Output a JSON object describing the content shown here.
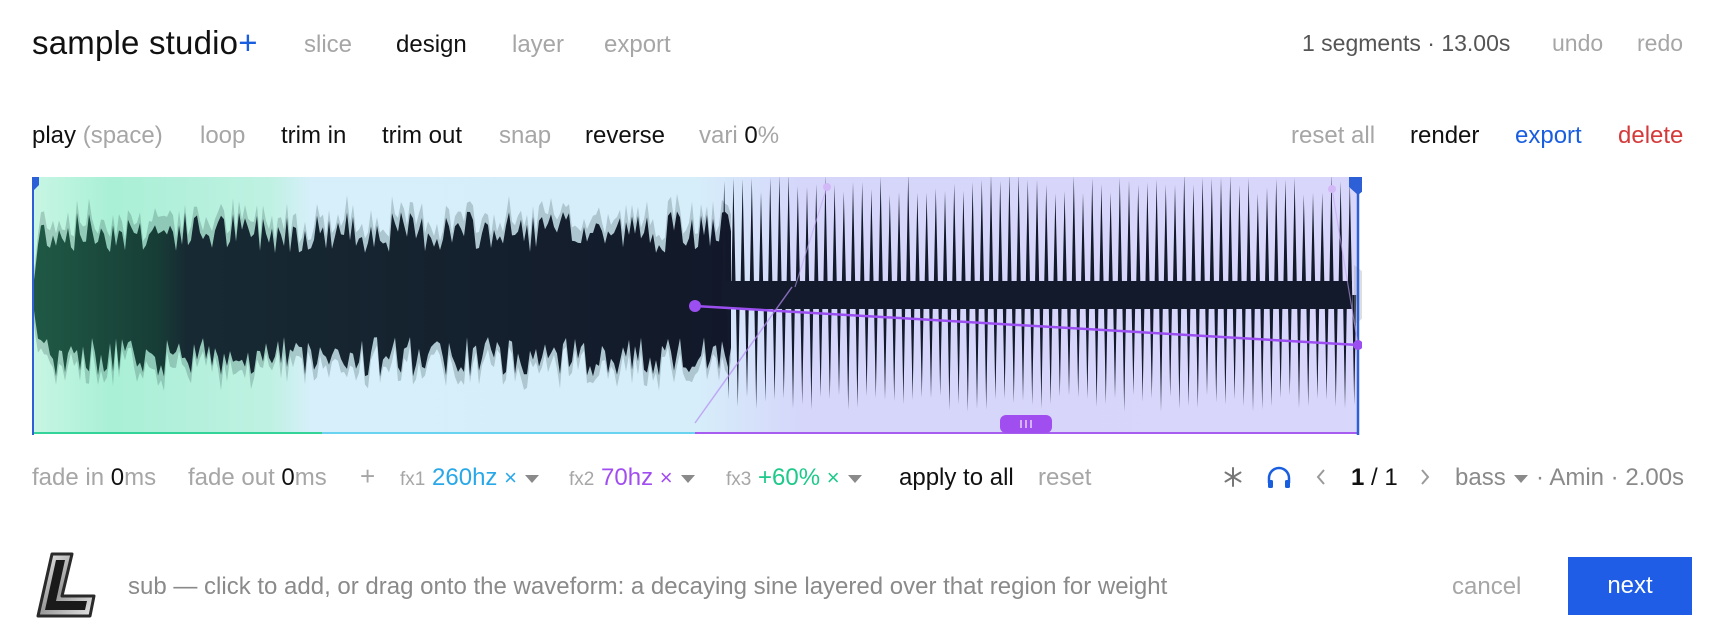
{
  "header": {
    "app_title": "sample studio",
    "app_title_plus": "+",
    "tabs": [
      {
        "label": "slice",
        "active": false
      },
      {
        "label": "design",
        "active": true
      },
      {
        "label": "layer",
        "active": false
      },
      {
        "label": "export",
        "active": false
      }
    ],
    "segments_info": "1 segments · 13.00s",
    "undo": "undo",
    "redo": "redo"
  },
  "toolbar": {
    "play": "play",
    "play_hint": "(space)",
    "loop": "loop",
    "trim_in": "trim in",
    "trim_out": "trim out",
    "snap": "snap",
    "reverse": "reverse",
    "vari_label": "vari",
    "vari_value": "0",
    "vari_unit": "%",
    "reset_all": "reset all",
    "render": "render",
    "export": "export",
    "delete": "delete"
  },
  "controls": {
    "fade_in_label": "fade in",
    "fade_in_value": "0",
    "fade_in_unit": "ms",
    "fade_out_label": "fade out",
    "fade_out_value": "0",
    "fade_out_unit": "ms",
    "add": "+",
    "fx": [
      {
        "label": "fx1",
        "value": "260hz",
        "remove": "×",
        "color": "#29a8e8"
      },
      {
        "label": "fx2",
        "value": "70hz",
        "remove": "×",
        "color": "#a14ef0"
      },
      {
        "label": "fx3",
        "value": "+60%",
        "remove": "×",
        "color": "#1ec98a"
      }
    ],
    "apply_to_all": "apply to all",
    "reset": "reset",
    "page_current": "1",
    "page_sep": "/",
    "page_total": "1",
    "instrument": "bass",
    "key_length": "· Amin · 2.00s"
  },
  "footer": {
    "hint": "sub — click to add, or drag onto the waveform: a decaying sine layered over that region for weight",
    "cancel": "cancel",
    "next": "next"
  },
  "icons": {
    "asterisk": "asterisk-icon",
    "headphones": "headphones-icon",
    "prev": "chevron-left-icon",
    "next": "chevron-right-icon",
    "logo": "l-logo-icon"
  },
  "colors": {
    "accent": "#1f5de6",
    "danger": "#d43a3a",
    "fx1": "#29a8e8",
    "fx2": "#a14ef0",
    "fx3": "#1ec98a",
    "wave": "#16232c"
  }
}
